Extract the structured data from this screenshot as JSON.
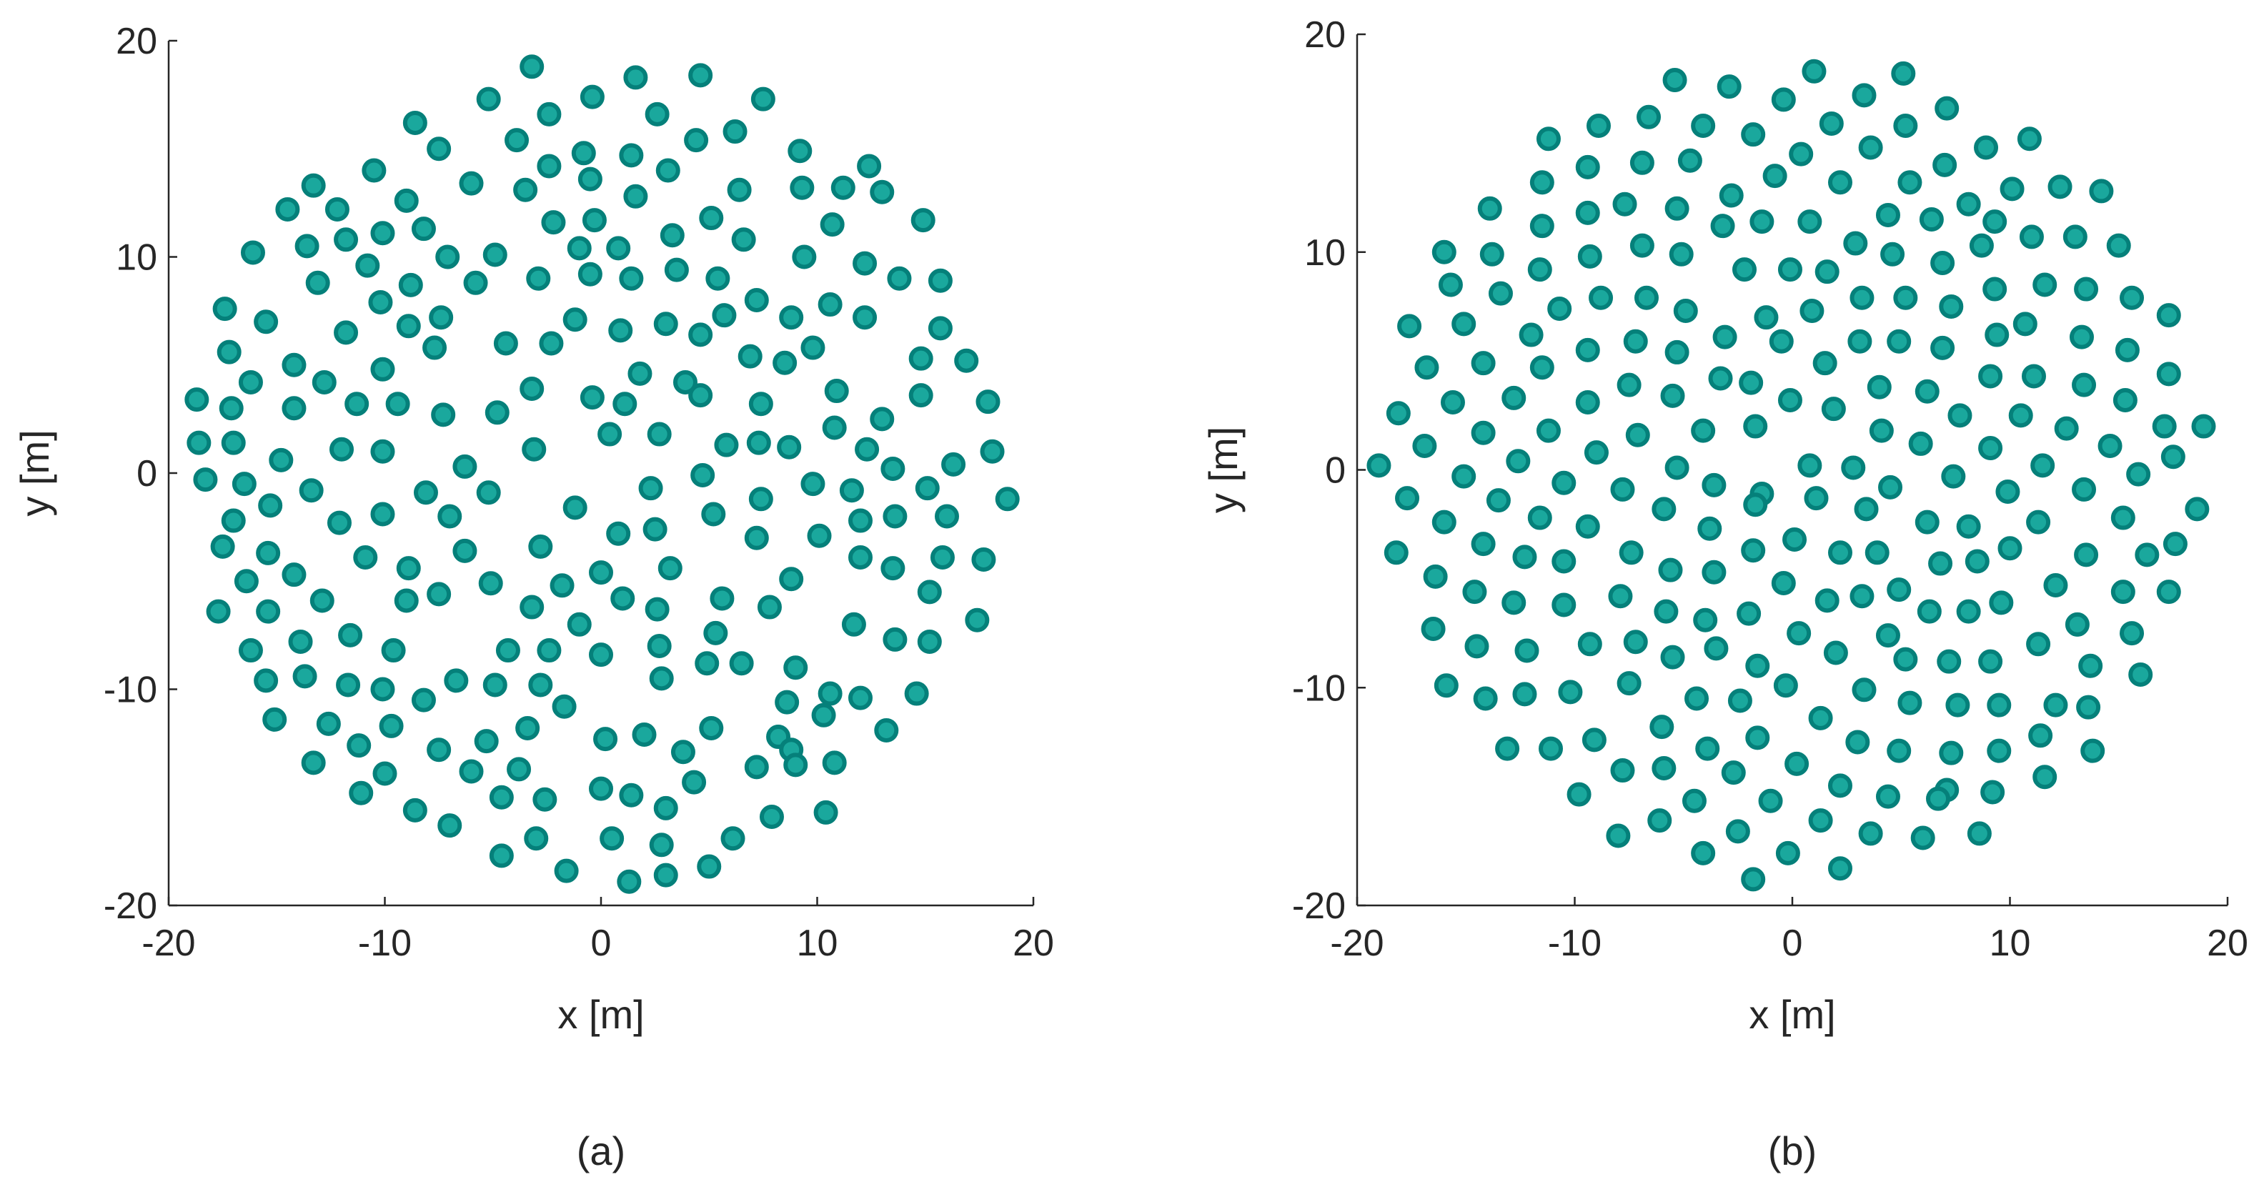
{
  "chart_data": [
    {
      "type": "scatter",
      "caption": "(a)",
      "xlabel": "x [m]",
      "ylabel": "y [m]",
      "xlim": [
        -20,
        20
      ],
      "ylim": [
        -20,
        20
      ],
      "xticks": [
        -20,
        -10,
        0,
        10,
        20
      ],
      "yticks": [
        -20,
        -10,
        0,
        10,
        20
      ],
      "color": "#1aa89d",
      "edge_color": "#05807a",
      "x": [
        -3.2,
        1.6,
        4.6,
        -5.2,
        -0.4,
        7.5,
        -2.4,
        2.6,
        -8.6,
        6.2,
        -3.9,
        4.4,
        -7.5,
        -0.8,
        1.4,
        9.2,
        -10.5,
        -2.4,
        3.1,
        12.4,
        -6.0,
        -13.3,
        -3.5,
        -0.5,
        6.4,
        9.3,
        11.2,
        13.0,
        1.6,
        -9.0,
        -14.5,
        -12.2,
        14.9,
        -2.2,
        -0.3,
        5.1,
        10.7,
        -8.2,
        -10.1,
        -11.8,
        3.3,
        6.6,
        -1.0,
        0.8,
        -13.6,
        -16.1,
        -7.1,
        -4.9,
        9.4,
        12.2,
        -10.8,
        3.5,
        -2.9,
        -0.5,
        1.4,
        5.4,
        13.8,
        15.7,
        -13.1,
        -8.8,
        -5.8,
        7.2,
        -10.2,
        -17.4,
        10.6,
        8.8,
        -15.5,
        -7.4,
        -1.2,
        3.0,
        5.7,
        12.2,
        -8.9,
        4.6,
        15.7,
        -11.8,
        0.9,
        -4.4,
        -2.3,
        -7.7,
        -17.2,
        9.8,
        6.9,
        8.5,
        14.8,
        16.9,
        -14.2,
        -10.1,
        1.8,
        -16.2,
        -12.8,
        3.9,
        -3.2,
        10.9,
        4.6,
        14.8,
        -0.4,
        1.1,
        -18.7,
        -11.3,
        -9.4,
        7.4,
        17.9,
        -17.1,
        -14.2,
        -7.3,
        -4.8,
        13.0,
        10.8,
        0.4,
        2.7,
        -18.6,
        -17.0,
        5.8,
        7.3,
        8.7,
        -12.0,
        -10.1,
        -3.1,
        12.3,
        18.1,
        -14.8,
        -6.3,
        4.7,
        13.5,
        16.3,
        -18.3,
        -16.5,
        9.8,
        15.1,
        2.3,
        11.6,
        -13.4,
        -8.1,
        -5.2,
        7.4,
        18.8,
        -15.3,
        -1.2,
        5.2,
        -10.1,
        -7.0,
        13.6,
        16.0,
        -17.0,
        -12.1,
        12.0,
        2.5,
        0.8,
        7.2,
        10.1,
        -17.5,
        -2.8,
        -6.3,
        -15.4,
        -10.9,
        12.0,
        15.8,
        17.7,
        -8.9,
        3.2,
        -14.2,
        0.0,
        13.5,
        8.8,
        -16.4,
        -5.1,
        -1.8,
        5.6,
        -7.5,
        1.0,
        15.2,
        -9.0,
        -12.9,
        -3.2,
        2.6,
        7.8,
        -17.7,
        -15.4,
        -1.0,
        11.7,
        17.4,
        5.3,
        -13.9,
        -11.6,
        13.6,
        15.2,
        2.7,
        -16.2,
        -9.6,
        -4.3,
        -2.4,
        0.0,
        4.9,
        6.5,
        9.0,
        -13.7,
        -15.5,
        -6.7,
        -2.8,
        2.8,
        -11.7,
        -4.9,
        10.6,
        -10.1,
        14.6,
        -8.2,
        8.6,
        12.0,
        -1.7,
        10.3,
        -15.1,
        -12.6,
        -9.7,
        -3.4,
        13.2,
        5.1,
        2.0,
        0.2,
        8.2,
        8.8,
        -7.5,
        -11.2,
        -5.3,
        3.8,
        10.8,
        -13.3,
        -3.8,
        7.2,
        9.0,
        -6.0,
        -10.0,
        4.3,
        -11.1,
        0.0,
        1.4,
        -4.6,
        -2.6,
        3.0,
        -8.6,
        10.4,
        7.9,
        -7.0,
        -3.0,
        0.5,
        6.1,
        2.8,
        -4.6,
        5.0,
        -1.6,
        3.0,
        1.3
      ],
      "y": [
        18.8,
        18.3,
        18.4,
        17.3,
        17.4,
        17.3,
        16.6,
        16.6,
        16.2,
        15.8,
        15.4,
        15.4,
        15.0,
        14.8,
        14.7,
        14.9,
        14.0,
        14.2,
        14.0,
        14.2,
        13.4,
        13.3,
        13.1,
        13.6,
        13.1,
        13.2,
        13.2,
        13.0,
        12.8,
        12.6,
        12.2,
        12.2,
        11.7,
        11.6,
        11.7,
        11.8,
        11.5,
        11.3,
        11.1,
        10.8,
        11.0,
        10.8,
        10.4,
        10.4,
        10.5,
        10.2,
        10.0,
        10.1,
        10.0,
        9.7,
        9.6,
        9.4,
        9.0,
        9.2,
        9.0,
        9.0,
        9.0,
        8.9,
        8.8,
        8.7,
        8.8,
        8.0,
        7.9,
        7.6,
        7.8,
        7.2,
        7.0,
        7.2,
        7.1,
        6.9,
        7.3,
        7.2,
        6.8,
        6.4,
        6.7,
        6.5,
        6.6,
        6.0,
        6.0,
        5.8,
        5.6,
        5.8,
        5.4,
        5.1,
        5.3,
        5.2,
        5.0,
        4.8,
        4.6,
        4.2,
        4.2,
        4.2,
        3.9,
        3.8,
        3.6,
        3.6,
        3.5,
        3.2,
        3.4,
        3.2,
        3.2,
        3.2,
        3.3,
        3.0,
        3.0,
        2.7,
        2.8,
        2.5,
        2.1,
        1.8,
        1.8,
        1.4,
        1.4,
        1.3,
        1.4,
        1.2,
        1.1,
        1.0,
        1.1,
        1.1,
        1.0,
        0.6,
        0.3,
        -0.1,
        0.2,
        0.4,
        -0.3,
        -0.5,
        -0.5,
        -0.7,
        -0.7,
        -0.8,
        -0.8,
        -0.9,
        -0.9,
        -1.2,
        -1.2,
        -1.5,
        -1.6,
        -1.9,
        -1.9,
        -2.0,
        -2.0,
        -2.0,
        -2.2,
        -2.3,
        -2.2,
        -2.6,
        -2.8,
        -3.0,
        -2.9,
        -3.4,
        -3.4,
        -3.6,
        -3.7,
        -3.9,
        -3.9,
        -3.9,
        -4.0,
        -4.4,
        -4.4,
        -4.7,
        -4.6,
        -4.4,
        -4.9,
        -5.0,
        -5.1,
        -5.2,
        -5.8,
        -5.6,
        -5.8,
        -5.5,
        -5.9,
        -5.9,
        -6.2,
        -6.3,
        -6.2,
        -6.4,
        -6.4,
        -7.0,
        -7.0,
        -6.8,
        -7.4,
        -7.8,
        -7.5,
        -7.7,
        -7.8,
        -8.0,
        -8.2,
        -8.2,
        -8.2,
        -8.2,
        -8.4,
        -8.8,
        -8.8,
        -9.0,
        -9.4,
        -9.6,
        -9.6,
        -9.8,
        -9.5,
        -9.8,
        -9.8,
        -10.2,
        -10.0,
        -10.2,
        -10.5,
        -10.6,
        -10.4,
        -10.8,
        -11.2,
        -11.4,
        -11.6,
        -11.7,
        -11.8,
        -11.9,
        -11.8,
        -12.1,
        -12.3,
        -12.2,
        -12.8,
        -12.8,
        -12.6,
        -12.4,
        -12.9,
        -13.4,
        -13.4,
        -13.7,
        -13.6,
        -13.5,
        -13.8,
        -13.9,
        -14.3,
        -14.8,
        -14.6,
        -14.9,
        -15.0,
        -15.1,
        -15.5,
        -15.6,
        -15.7,
        -15.9,
        -16.3,
        -16.9,
        -16.9,
        -16.9,
        -17.2,
        -17.7,
        -18.2,
        -18.4,
        -18.6,
        -18.9
      ]
    },
    {
      "type": "scatter",
      "caption": "(b)",
      "xlabel": "x [m]",
      "ylabel": "y [m]",
      "xlim": [
        -20,
        20
      ],
      "ylim": [
        -20,
        20
      ],
      "xticks": [
        -20,
        -10,
        0,
        10,
        20
      ],
      "yticks": [
        -20,
        -10,
        0,
        10,
        20
      ],
      "color": "#1aa89d",
      "edge_color": "#05807a",
      "x": [
        1.0,
        5.1,
        -5.4,
        -2.9,
        -0.4,
        3.3,
        7.1,
        -6.6,
        -1.8,
        1.8,
        -8.9,
        -11.2,
        -4.1,
        5.2,
        10.9,
        3.6,
        8.9,
        0.4,
        7.0,
        -9.4,
        -6.9,
        -4.7,
        -0.8,
        -11.5,
        2.2,
        5.4,
        12.3,
        14.2,
        10.1,
        -2.8,
        -13.9,
        -7.7,
        -5.3,
        4.4,
        -9.4,
        8.1,
        0.8,
        6.4,
        -1.4,
        9.3,
        -11.5,
        -3.2,
        11.0,
        13.0,
        15.0,
        2.9,
        -6.9,
        -5.1,
        -16.0,
        -9.3,
        8.7,
        -13.8,
        4.6,
        6.9,
        -11.6,
        -0.1,
        -2.2,
        1.6,
        -15.7,
        9.3,
        11.6,
        13.5,
        -13.4,
        -8.8,
        15.6,
        -6.7,
        5.2,
        3.2,
        7.3,
        -10.7,
        -4.9,
        17.3,
        0.9,
        -1.2,
        10.7,
        -17.6,
        -15.1,
        -3.1,
        -12.0,
        9.4,
        13.3,
        3.1,
        4.9,
        -7.2,
        -0.5,
        6.9,
        -9.4,
        -5.3,
        15.4,
        1.5,
        -14.2,
        -16.8,
        -11.5,
        17.3,
        11.1,
        -1.9,
        9.1,
        -3.3,
        -7.5,
        13.4,
        4.0,
        6.2,
        -5.5,
        -9.4,
        -0.1,
        -15.6,
        15.3,
        -12.8,
        1.9,
        -18.1,
        7.7,
        10.5,
        -1.7,
        18.9,
        17.1,
        12.6,
        4.1,
        -14.2,
        -11.2,
        -4.1,
        -7.1,
        5.9,
        14.6,
        9.1,
        -16.9,
        -9.0,
        0.8,
        -5.3,
        11.5,
        -12.6,
        -19.0,
        17.5,
        2.8,
        -15.1,
        7.4,
        15.9,
        -3.6,
        -10.5,
        13.4,
        4.5,
        -1.4,
        -7.8,
        9.9,
        -13.5,
        -17.7,
        1.1,
        -5.9,
        18.6,
        3.4,
        6.2,
        11.3,
        -16.0,
        -1.7,
        -11.6,
        15.2,
        -9.4,
        -3.8,
        8.1,
        0.1,
        -14.2,
        17.6,
        -7.4,
        -18.2,
        2.2,
        3.9,
        13.5,
        -1.8,
        16.3,
        -12.3,
        10.0,
        6.8,
        8.5,
        -5.6,
        -3.6,
        -10.5,
        -16.4,
        12.1,
        -0.4,
        4.9,
        17.3,
        -14.6,
        15.2,
        -7.9,
        3.2,
        1.6,
        -12.8,
        9.6,
        -10.5,
        -5.8,
        6.3,
        8.1,
        -2.0,
        -4.0,
        13.1,
        -16.5,
        15.6,
        0.3,
        4.4,
        -7.2,
        11.3,
        -9.3,
        -12.2,
        -14.5,
        -3.5,
        2.0,
        -5.5,
        7.2,
        9.1,
        5.2,
        -1.6,
        13.7,
        16.0,
        -0.3,
        3.3,
        -12.3,
        -7.5,
        -15.9,
        -10.2,
        -4.4,
        -2.4,
        5.4,
        7.6,
        9.5,
        12.1,
        13.6,
        -14.1,
        1.3,
        -6.0,
        11.4,
        3.0,
        -9.1,
        -1.6,
        4.9,
        -3.9,
        -11.1,
        -13.1,
        7.3,
        9.5,
        13.8,
        0.2,
        -7.8,
        -5.9,
        -2.7,
        2.2,
        7.1,
        11.6,
        4.4,
        -9.8,
        9.2,
        -4.5,
        -1.0,
        6.7,
        1.3,
        -6.1,
        -2.5,
        -8.0,
        3.6,
        6.0,
        8.6,
        -0.2,
        -4.1,
        2.2,
        -1.8
      ],
      "y": [
        18.3,
        18.2,
        17.9,
        17.6,
        17.0,
        17.2,
        16.6,
        16.2,
        15.4,
        15.9,
        15.8,
        15.2,
        15.8,
        15.8,
        15.2,
        14.8,
        14.8,
        14.5,
        14.0,
        13.9,
        14.1,
        14.2,
        13.5,
        13.2,
        13.2,
        13.2,
        13.0,
        12.8,
        12.9,
        12.6,
        12.0,
        12.2,
        12.0,
        11.7,
        11.8,
        12.2,
        11.4,
        11.5,
        11.4,
        11.4,
        11.2,
        11.2,
        10.7,
        10.7,
        10.3,
        10.4,
        10.3,
        9.9,
        10.0,
        9.8,
        10.3,
        9.9,
        9.9,
        9.5,
        9.2,
        9.2,
        9.2,
        9.1,
        8.5,
        8.3,
        8.5,
        8.3,
        8.1,
        7.9,
        7.9,
        7.9,
        7.9,
        7.9,
        7.5,
        7.4,
        7.3,
        7.1,
        7.3,
        7.0,
        6.7,
        6.6,
        6.7,
        6.1,
        6.2,
        6.2,
        6.1,
        5.9,
        5.9,
        5.9,
        5.9,
        5.6,
        5.5,
        5.4,
        5.5,
        4.9,
        4.9,
        4.7,
        4.7,
        4.4,
        4.3,
        4.0,
        4.3,
        4.2,
        3.9,
        3.9,
        3.8,
        3.6,
        3.4,
        3.1,
        3.2,
        3.1,
        3.2,
        3.3,
        2.8,
        2.6,
        2.5,
        2.5,
        2.0,
        2.0,
        2.0,
        1.9,
        1.8,
        1.7,
        1.8,
        1.8,
        1.6,
        1.2,
        1.1,
        1.0,
        1.1,
        0.8,
        0.2,
        0.1,
        0.2,
        0.4,
        0.2,
        0.6,
        0.1,
        -0.3,
        -0.3,
        -0.2,
        -0.7,
        -0.6,
        -0.9,
        -0.8,
        -1.1,
        -0.9,
        -1.0,
        -1.4,
        -1.3,
        -1.3,
        -1.8,
        -1.8,
        -1.8,
        -2.4,
        -2.4,
        -2.4,
        -1.6,
        -2.2,
        -2.2,
        -2.6,
        -2.7,
        -2.6,
        -3.2,
        -3.4,
        -3.4,
        -3.8,
        -3.8,
        -3.8,
        -3.8,
        -3.9,
        -3.7,
        -3.9,
        -4.0,
        -3.6,
        -4.3,
        -4.2,
        -4.6,
        -4.7,
        -4.2,
        -4.9,
        -5.3,
        -5.2,
        -5.5,
        -5.6,
        -5.6,
        -5.6,
        -5.8,
        -5.8,
        -6.0,
        -6.1,
        -6.1,
        -6.2,
        -6.5,
        -6.5,
        -6.5,
        -6.6,
        -6.9,
        -7.1,
        -7.3,
        -7.5,
        -7.5,
        -7.6,
        -7.9,
        -8.0,
        -8.0,
        -8.3,
        -8.1,
        -8.2,
        -8.4,
        -8.6,
        -8.8,
        -8.8,
        -8.7,
        -9.0,
        -9.0,
        -9.4,
        -9.9,
        -10.1,
        -10.3,
        -9.8,
        -9.9,
        -10.2,
        -10.5,
        -10.6,
        -10.7,
        -10.8,
        -10.8,
        -10.8,
        -10.9,
        -10.5,
        -11.4,
        -11.8,
        -12.2,
        -12.5,
        -12.4,
        -12.3,
        -12.9,
        -12.8,
        -12.8,
        -12.8,
        -13.0,
        -12.9,
        -12.9,
        -13.5,
        -13.8,
        -13.7,
        -13.9,
        -14.5,
        -14.7,
        -14.1,
        -15.0,
        -14.9,
        -14.8,
        -15.2,
        -15.2,
        -15.1,
        -16.1,
        -16.1,
        -16.6,
        -16.8,
        -16.7,
        -16.9,
        -16.7,
        -17.6,
        -17.6,
        -18.3,
        -18.8
      ]
    }
  ]
}
